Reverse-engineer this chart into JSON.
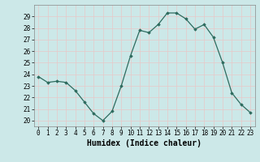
{
  "x": [
    0,
    1,
    2,
    3,
    4,
    5,
    6,
    7,
    8,
    9,
    10,
    11,
    12,
    13,
    14,
    15,
    16,
    17,
    18,
    19,
    20,
    21,
    22,
    23
  ],
  "y": [
    23.8,
    23.3,
    23.4,
    23.3,
    22.6,
    21.6,
    20.6,
    20.0,
    20.8,
    23.0,
    25.6,
    27.8,
    27.6,
    28.3,
    29.3,
    29.3,
    28.8,
    27.9,
    28.3,
    27.2,
    25.0,
    22.4,
    21.4,
    20.7
  ],
  "xlabel": "Humidex (Indice chaleur)",
  "xlim": [
    -0.5,
    23.5
  ],
  "ylim": [
    19.5,
    30.0
  ],
  "yticks": [
    20,
    21,
    22,
    23,
    24,
    25,
    26,
    27,
    28,
    29
  ],
  "xticks": [
    0,
    1,
    2,
    3,
    4,
    5,
    6,
    7,
    8,
    9,
    10,
    11,
    12,
    13,
    14,
    15,
    16,
    17,
    18,
    19,
    20,
    21,
    22,
    23
  ],
  "line_color": "#2d6b5e",
  "marker": "D",
  "marker_size": 1.8,
  "bg_color": "#cce8e8",
  "grid_color": "#e8c8c8",
  "tick_fontsize": 5.5,
  "xlabel_fontsize": 7.0,
  "linewidth": 0.9
}
